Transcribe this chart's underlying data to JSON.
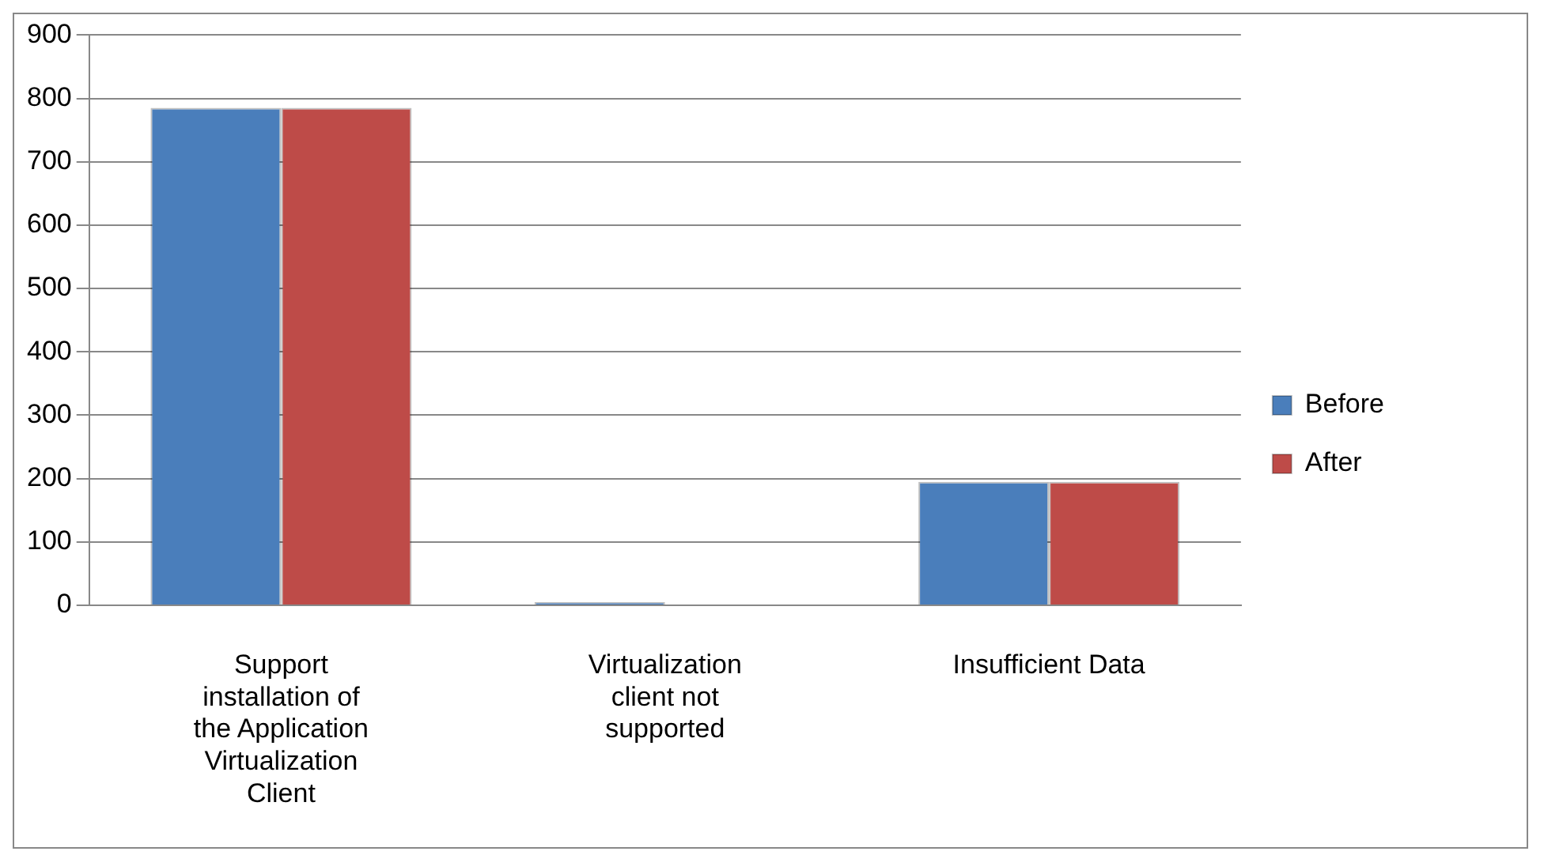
{
  "chart_data": {
    "type": "bar",
    "categories": [
      "Support installation of the Application Virtualization Client",
      "Virtualization client not supported",
      "Insufficient Data"
    ],
    "series": [
      {
        "name": "Before",
        "color": "#4a7ebb",
        "values": [
          785,
          5,
          195
        ]
      },
      {
        "name": "After",
        "color": "#be4b48",
        "values": [
          785,
          0,
          195
        ]
      }
    ],
    "ylim": [
      0,
      900
    ],
    "yticks": [
      0,
      100,
      200,
      300,
      400,
      500,
      600,
      700,
      800,
      900
    ],
    "grid": "y",
    "legend": "right"
  }
}
